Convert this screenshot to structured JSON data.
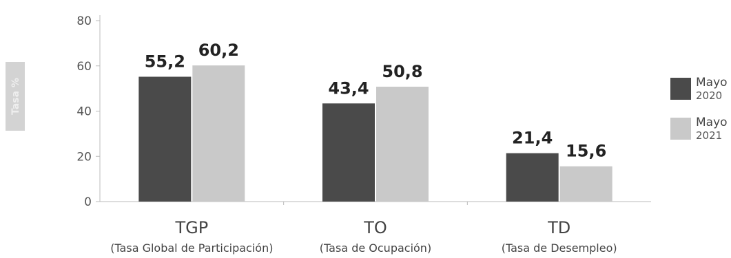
{
  "chart_data": {
    "type": "bar",
    "categories": [
      "TGP",
      "TO",
      "TD"
    ],
    "category_subtitles": [
      "(Tasa Global de Participación)",
      "(Tasa de Ocupación)",
      "(Tasa de Desempleo)"
    ],
    "series": [
      {
        "legend_main": "Mayo",
        "legend_sub": "2020",
        "values": [
          55.2,
          43.4,
          21.4
        ],
        "value_labels": [
          "55,2",
          "43,4",
          "21,4"
        ],
        "color": "#4a4a4a"
      },
      {
        "legend_main": "Mayo",
        "legend_sub": "2021",
        "values": [
          60.2,
          50.8,
          15.6
        ],
        "value_labels": [
          "60,2",
          "50,8",
          "15,6"
        ],
        "color": "#c9c9c9"
      }
    ],
    "ylabel": "Tasa %",
    "ylim": [
      0,
      80
    ],
    "yticks": [
      0,
      20,
      40,
      60,
      80
    ],
    "grid": false,
    "legend_position": "right"
  }
}
